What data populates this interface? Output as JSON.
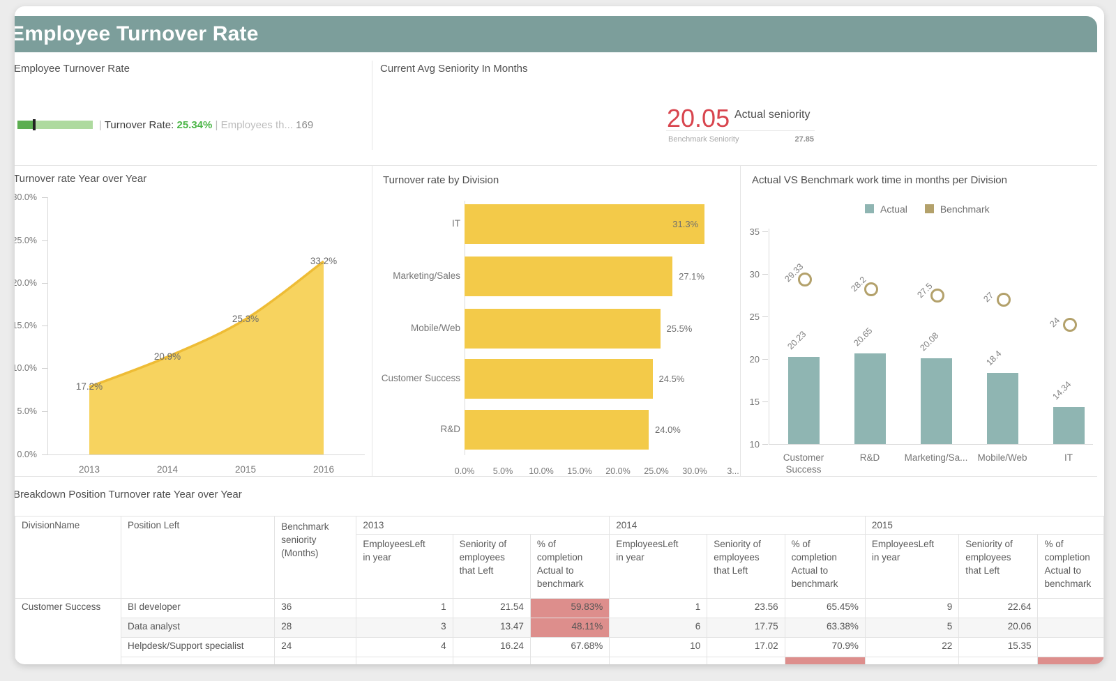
{
  "header": {
    "title": "Employee Turnover Rate",
    "color": "#7c9e9b"
  },
  "kpi_turnover": {
    "panel_title": "Employee Turnover Rate",
    "sep1": "|",
    "label": "Turnover Rate:",
    "value": "25.34%",
    "sep2": "|",
    "secondary_label": "Employees th...",
    "secondary_value": "169"
  },
  "kpi_seniority": {
    "panel_title": "Current Avg Seniority In Months",
    "actual_value": "20.05",
    "actual_label": "Actual seniority",
    "benchmark_label": "Benchmark Seniority",
    "benchmark_value": "27.85"
  },
  "chart_data": [
    {
      "type": "area",
      "title": "Turnover rate Year over Year",
      "x": [
        "2013",
        "2014",
        "2015",
        "2016"
      ],
      "values": [
        17.2,
        20.9,
        25.3,
        33.2
      ],
      "labels": [
        "17.2%",
        "20.9%",
        "25.3%",
        "33.2%"
      ],
      "ylabel_ticks": [
        "30.0%",
        "25.0%",
        "20.0%",
        "15.0%",
        "10.0%",
        "5.0%",
        "0.0%"
      ],
      "ylim": [
        0,
        30
      ],
      "grid": false,
      "color": "#f7d35f"
    },
    {
      "type": "bar",
      "title": "Turnover rate by Division",
      "categories": [
        "IT",
        "Marketing/Sales",
        "Mobile/Web",
        "Customer Success",
        "R&D"
      ],
      "values": [
        31.3,
        27.1,
        25.5,
        24.5,
        24.0
      ],
      "labels": [
        "31.3%",
        "27.1%",
        "25.5%",
        "24.5%",
        "24.0%"
      ],
      "xlabel_ticks": [
        "0.0%",
        "5.0%",
        "10.0%",
        "15.0%",
        "20.0%",
        "25.0%",
        "30.0%",
        "3..."
      ],
      "xlim": [
        0,
        35
      ],
      "orientation": "horizontal",
      "color": "#f3ca49"
    },
    {
      "type": "bar",
      "title": "Actual VS Benchmark work time in months per Division",
      "categories": [
        "Customer Success",
        "R&D",
        "Marketing/Sa...",
        "Mobile/Web",
        "IT"
      ],
      "series": [
        {
          "name": "Actual",
          "values": [
            20.23,
            20.65,
            20.08,
            18.4,
            14.34
          ],
          "color": "#8fb5b2",
          "style": "column"
        },
        {
          "name": "Benchmark",
          "values": [
            29.33,
            28.2,
            27.5,
            27,
            24
          ],
          "color": "#b3a16b",
          "style": "circle-marker"
        }
      ],
      "actual_labels": [
        "20.23",
        "20.65",
        "20.08",
        "18.4",
        "14.34"
      ],
      "benchmark_labels": [
        "29.33",
        "28.2",
        "27.5",
        "27",
        "24"
      ],
      "ylabel_ticks": [
        "35",
        "30",
        "25",
        "20",
        "15",
        "10"
      ],
      "ylim": [
        10,
        35
      ]
    }
  ],
  "table": {
    "title": "Breakdown Position Turnover rate Year over Year",
    "col_headers": [
      "DivisionName",
      "Position Left",
      "Benchmark seniority (Months)"
    ],
    "year_groups": [
      "2013",
      "2014",
      "2015"
    ],
    "year_sub_headers": [
      "EmployeesLeft in year",
      "Seniority of employees that Left",
      "% of completion Actual to benchmark"
    ],
    "rows": [
      {
        "division": "Customer Success",
        "position": "BI developer",
        "benchmark": "36",
        "y2013": {
          "left": "1",
          "seniority": "21.54",
          "pct": "59.83%",
          "pct_red": true
        },
        "y2014": {
          "left": "1",
          "seniority": "23.56",
          "pct": "65.45%",
          "pct_red": false
        },
        "y2015": {
          "left": "9",
          "seniority": "22.64",
          "pct": "",
          "pct_red": false
        }
      },
      {
        "division": "",
        "position": "Data analyst",
        "benchmark": "28",
        "y2013": {
          "left": "3",
          "seniority": "13.47",
          "pct": "48.11%",
          "pct_red": true
        },
        "y2014": {
          "left": "6",
          "seniority": "17.75",
          "pct": "63.38%",
          "pct_red": false
        },
        "y2015": {
          "left": "5",
          "seniority": "20.06",
          "pct": "",
          "pct_red": false
        }
      },
      {
        "division": "",
        "position": "Helpdesk/Support specialist",
        "benchmark": "24",
        "y2013": {
          "left": "4",
          "seniority": "16.24",
          "pct": "67.68%",
          "pct_red": false
        },
        "y2014": {
          "left": "10",
          "seniority": "17.02",
          "pct": "70.9%",
          "pct_red": false
        },
        "y2015": {
          "left": "22",
          "seniority": "15.35",
          "pct": "",
          "pct_red": false
        }
      }
    ]
  }
}
